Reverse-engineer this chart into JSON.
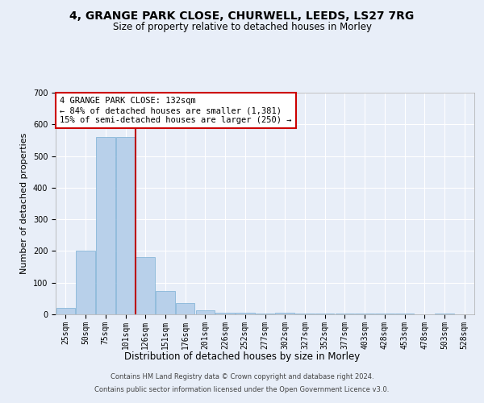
{
  "title_line1": "4, GRANGE PARK CLOSE, CHURWELL, LEEDS, LS27 7RG",
  "title_line2": "Size of property relative to detached houses in Morley",
  "xlabel": "Distribution of detached houses by size in Morley",
  "ylabel": "Number of detached properties",
  "bar_color": "#b8d0ea",
  "bar_edge_color": "#7aafd4",
  "categories": [
    "25sqm",
    "50sqm",
    "75sqm",
    "101sqm",
    "126sqm",
    "151sqm",
    "176sqm",
    "201sqm",
    "226sqm",
    "252sqm",
    "277sqm",
    "302sqm",
    "327sqm",
    "352sqm",
    "377sqm",
    "403sqm",
    "428sqm",
    "453sqm",
    "478sqm",
    "503sqm",
    "528sqm"
  ],
  "values": [
    20,
    200,
    560,
    560,
    180,
    75,
    35,
    13,
    5,
    5,
    3,
    4,
    3,
    3,
    3,
    3,
    3,
    3,
    0,
    3,
    0
  ],
  "ylim": [
    0,
    700
  ],
  "yticks": [
    0,
    100,
    200,
    300,
    400,
    500,
    600,
    700
  ],
  "property_line_x": 3.5,
  "annotation_text_line1": "4 GRANGE PARK CLOSE: 132sqm",
  "annotation_text_line2": "← 84% of detached houses are smaller (1,381)",
  "annotation_text_line3": "15% of semi-detached houses are larger (250) →",
  "footer_line1": "Contains HM Land Registry data © Crown copyright and database right 2024.",
  "footer_line2": "Contains public sector information licensed under the Open Government Licence v3.0.",
  "background_color": "#e8eef8",
  "plot_bg_color": "#e8eef8",
  "grid_color": "#ffffff",
  "annotation_box_color": "#ffffff",
  "annotation_box_edge_color": "#cc0000",
  "vline_color": "#bb0000",
  "title_fontsize": 10,
  "subtitle_fontsize": 8.5,
  "tick_fontsize": 7,
  "ylabel_fontsize": 8,
  "xlabel_fontsize": 8.5,
  "annotation_fontsize": 7.5,
  "footer_fontsize": 6
}
